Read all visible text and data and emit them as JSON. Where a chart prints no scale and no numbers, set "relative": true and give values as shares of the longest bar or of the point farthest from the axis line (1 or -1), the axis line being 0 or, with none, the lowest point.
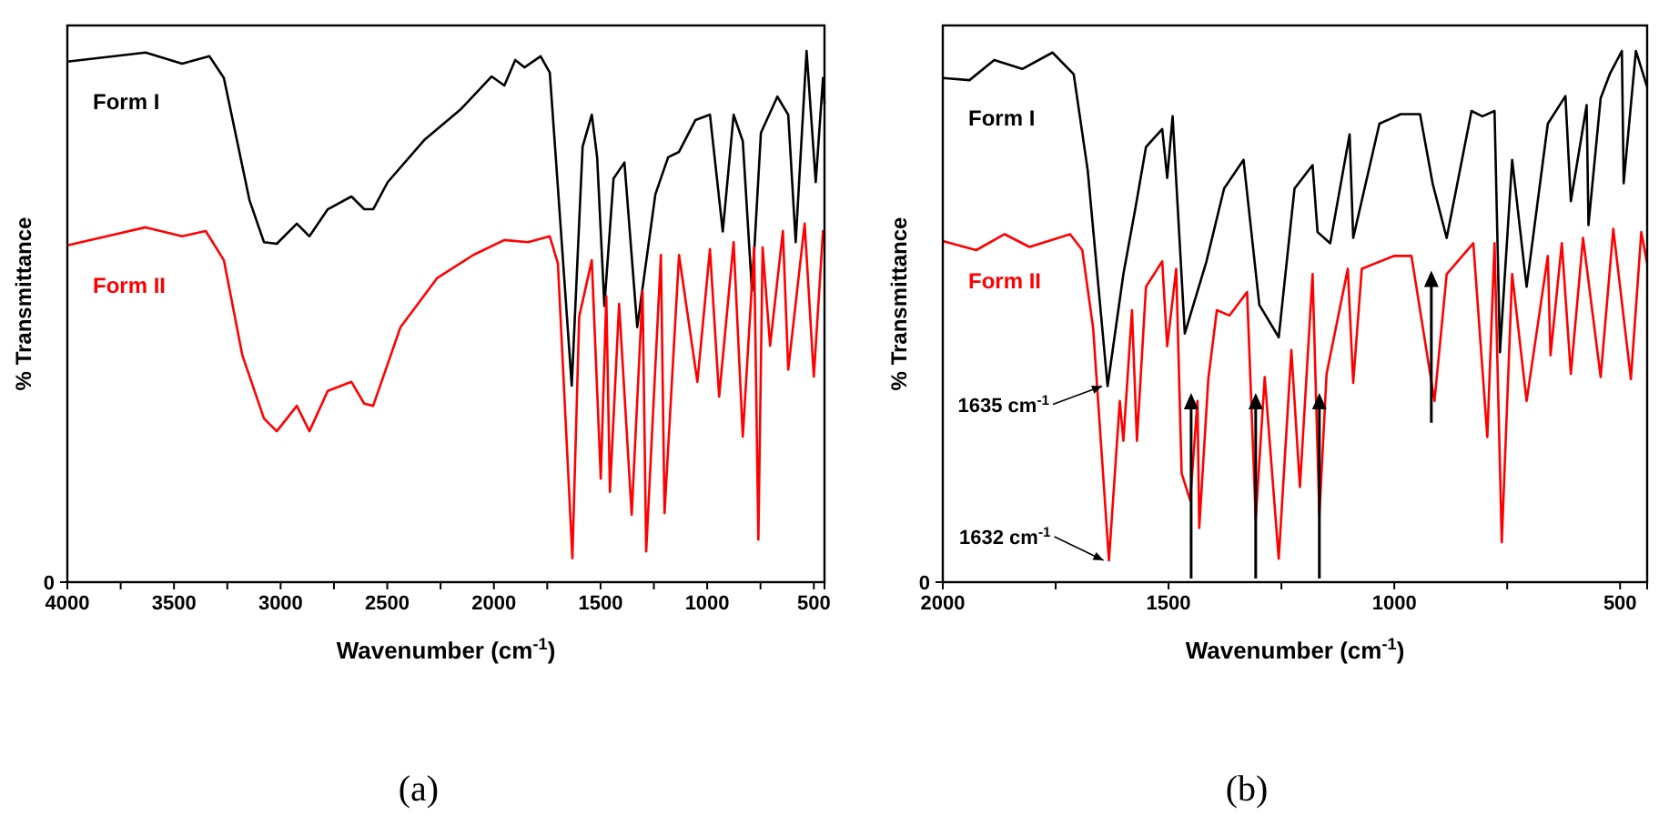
{
  "chart_data": [
    {
      "type": "line",
      "title": "(a)",
      "xlabel": "Wavenumber (cm$^{-1}$)",
      "ylabel": "% Transmittance",
      "relative": true,
      "xlim": [
        4000,
        450
      ],
      "xticks": [
        4000,
        {
          "value": 3750,
          "label": null
        },
        3500,
        {
          "value": 3250,
          "label": null
        },
        3000,
        {
          "value": 2750,
          "label": null
        },
        2500,
        {
          "value": 2250,
          "label": null
        },
        2000,
        {
          "value": 1750,
          "label": null
        },
        1500,
        {
          "value": 1250,
          "label": null
        },
        1000,
        {
          "value": 750,
          "label": null
        },
        500
      ],
      "annotations": [
        "0"
      ],
      "series": [
        {
          "name": "Form I",
          "color": "#000000",
          "x": [
            4000,
            3633,
            3462,
            3334,
            3266,
            3146,
            3078,
            3018,
            2924,
            2865,
            2779,
            2668,
            2608,
            2566,
            2498,
            2327,
            2156,
            2011,
            1951,
            1900,
            1857,
            1781,
            1738,
            1712,
            1635,
            1584,
            1541,
            1516,
            1482,
            1439,
            1388,
            1328,
            1243,
            1183,
            1132,
            1055,
            987,
            927,
            876,
            833,
            790,
            748,
            671,
            620,
            585,
            534,
            491,
            457,
            450
          ],
          "values": [
            0.98,
            0.997,
            0.976,
            0.99,
            0.949,
            0.719,
            0.64,
            0.637,
            0.675,
            0.651,
            0.702,
            0.726,
            0.702,
            0.702,
            0.753,
            0.832,
            0.89,
            0.952,
            0.935,
            0.983,
            0.969,
            0.99,
            0.959,
            0.812,
            0.37,
            0.82,
            0.88,
            0.8,
            0.52,
            0.76,
            0.79,
            0.48,
            0.73,
            0.8,
            0.81,
            0.87,
            0.88,
            0.66,
            0.88,
            0.83,
            0.548,
            0.846,
            0.914,
            0.88,
            0.64,
            1,
            0.753,
            0.949,
            0.9
          ]
        },
        {
          "name": "Form II",
          "color": "#ff0000",
          "x": [
            4000,
            3633,
            3462,
            3351,
            3266,
            3180,
            3078,
            3018,
            2924,
            2865,
            2779,
            2668,
            2608,
            2566,
            2438,
            2267,
            2096,
            1951,
            1840,
            1738,
            1700,
            1632,
            1600,
            1541,
            1499,
            1473,
            1456,
            1413,
            1354,
            1303,
            1286,
            1217,
            1200,
            1132,
            1046,
            987,
            944,
            876,
            833,
            780,
            760,
            740,
            705,
            645,
            620,
            543,
            500,
            457,
            450
          ],
          "values": [
            0.634,
            0.668,
            0.651,
            0.661,
            0.606,
            0.428,
            0.308,
            0.284,
            0.332,
            0.284,
            0.36,
            0.377,
            0.336,
            0.332,
            0.48,
            0.572,
            0.616,
            0.644,
            0.64,
            0.651,
            0.6,
            0.045,
            0.5,
            0.606,
            0.195,
            0.538,
            0.17,
            0.524,
            0.127,
            0.548,
            0.058,
            0.616,
            0.13,
            0.616,
            0.377,
            0.627,
            0.349,
            0.64,
            0.274,
            0.63,
            0.08,
            0.63,
            0.445,
            0.661,
            0.4,
            0.675,
            0.387,
            0.661,
            0.64
          ]
        }
      ]
    },
    {
      "type": "line",
      "title": "(b)",
      "xlabel": "Wavenumber (cm$^{-1}$)",
      "ylabel": "% Transmittance",
      "relative": true,
      "xlim": [
        2000,
        440
      ],
      "xticks": [
        2000,
        {
          "value": 1750,
          "label": null
        },
        1500,
        {
          "value": 1250,
          "label": null
        },
        1000,
        {
          "value": 750,
          "label": null
        },
        500
      ],
      "annotations": [
        "0",
        {
          "text": "1635 cm$^{-1}$",
          "x": 1635,
          "y": 0.369
        },
        {
          "text": "1632 cm$^{-1}$",
          "x": 1632,
          "y": 0.041
        }
      ],
      "series": [
        {
          "name": "Form I",
          "color": "#000000",
          "x": [
            2000,
            1941,
            1886,
            1824,
            1757,
            1710,
            1679,
            1635,
            1600,
            1573,
            1550,
            1514,
            1503,
            1491,
            1464,
            1416,
            1377,
            1334,
            1299,
            1256,
            1221,
            1181,
            1170,
            1142,
            1099,
            1091,
            1033,
            986,
            943,
            915,
            884,
            829,
            805,
            778,
            766,
            739,
            707,
            660,
            621,
            609,
            574,
            570,
            543,
            523,
            496,
            492,
            465,
            440
          ],
          "values": [
            0.949,
            0.945,
            0.983,
            0.966,
            0.997,
            0.956,
            0.775,
            0.369,
            0.58,
            0.706,
            0.819,
            0.853,
            0.761,
            0.877,
            0.468,
            0.604,
            0.741,
            0.795,
            0.522,
            0.461,
            0.741,
            0.785,
            0.659,
            0.638,
            0.843,
            0.648,
            0.863,
            0.881,
            0.881,
            0.75,
            0.648,
            0.887,
            0.877,
            0.887,
            0.433,
            0.795,
            0.556,
            0.863,
            0.915,
            0.717,
            0.898,
            0.672,
            0.911,
            0.956,
            1,
            0.751,
            1,
            0.932
          ]
        },
        {
          "name": "Form II",
          "color": "#ff0000",
          "x": [
            2000,
            1926,
            1863,
            1808,
            1718,
            1691,
            1667,
            1632,
            1608,
            1600,
            1581,
            1570,
            1550,
            1514,
            1503,
            1483,
            1471,
            1452,
            1436,
            1432,
            1412,
            1393,
            1365,
            1326,
            1307,
            1287,
            1256,
            1228,
            1209,
            1181,
            1166,
            1150,
            1103,
            1091,
            1072,
            1001,
            962,
            911,
            884,
            825,
            794,
            778,
            762,
            739,
            707,
            660,
            654,
            629,
            609,
            582,
            543,
            515,
            476,
            453,
            440
          ],
          "values": [
            0.642,
            0.625,
            0.655,
            0.631,
            0.655,
            0.625,
            0.478,
            0.041,
            0.341,
            0.266,
            0.512,
            0.266,
            0.556,
            0.604,
            0.444,
            0.59,
            0.205,
            0.154,
            0.341,
            0.102,
            0.382,
            0.512,
            0.502,
            0.546,
            0.119,
            0.386,
            0.044,
            0.437,
            0.179,
            0.58,
            0.126,
            0.392,
            0.59,
            0.375,
            0.59,
            0.614,
            0.614,
            0.341,
            0.58,
            0.638,
            0.273,
            0.638,
            0.075,
            0.58,
            0.341,
            0.614,
            0.427,
            0.638,
            0.392,
            0.648,
            0.386,
            0.665,
            0.382,
            0.659,
            0.6
          ]
        }
      ]
    }
  ]
}
